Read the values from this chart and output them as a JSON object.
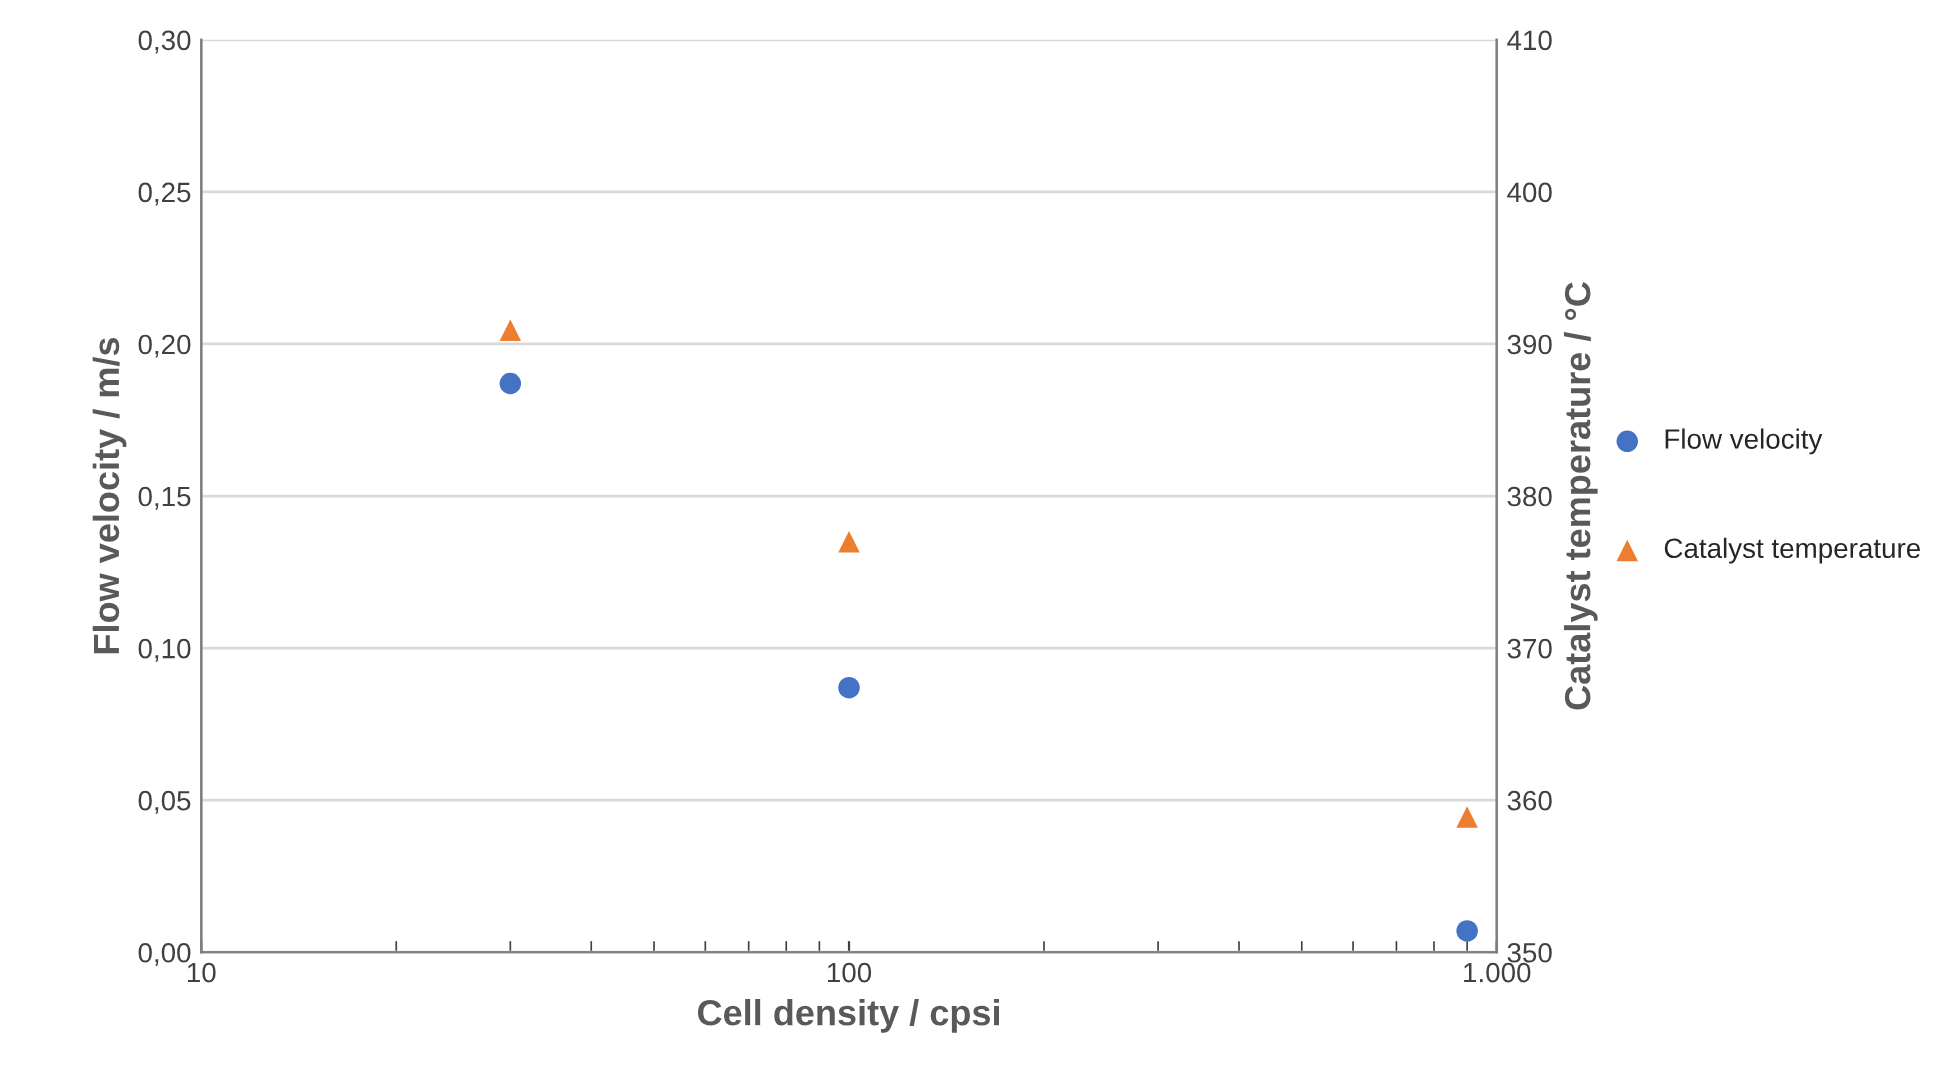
{
  "chart_data": {
    "type": "scatter",
    "log": "x",
    "xlabel": "Cell density / cpsi",
    "ylabel": "Flow velocity / m/s",
    "y2label": "Catalyst temperature / °C",
    "xlim": [
      10,
      1000
    ],
    "xticks": [
      10,
      100,
      {
        "value": 1000,
        "label": "1.000"
      }
    ],
    "ylim": [
      0,
      0.3
    ],
    "yticks": [
      {
        "value": 0,
        "label": "0,00"
      },
      {
        "value": 0.05,
        "label": "0,05"
      },
      {
        "value": 0.1,
        "label": "0,10"
      },
      {
        "value": 0.15,
        "label": "0,15"
      },
      {
        "value": 0.2,
        "label": "0,20"
      },
      {
        "value": 0.25,
        "label": "0,25"
      },
      {
        "value": 0.3,
        "label": "0,30"
      }
    ],
    "y2lim": [
      350,
      410
    ],
    "y2ticks": [
      350,
      360,
      370,
      380,
      390,
      400,
      410
    ],
    "grid": "y",
    "legend": "right",
    "series": [
      {
        "name": "Flow velocity",
        "color": "#4472c4",
        "marker": "circle",
        "x": [
          30,
          100,
          900
        ],
        "values": [
          0.187,
          0.087,
          0.007
        ]
      },
      {
        "name": "Catalyst temperature",
        "color": "#ed7d31",
        "marker": "triangle",
        "axis": "y2",
        "x": [
          30,
          100,
          900
        ],
        "values": [
          390.9,
          377,
          358.9
        ]
      }
    ]
  }
}
